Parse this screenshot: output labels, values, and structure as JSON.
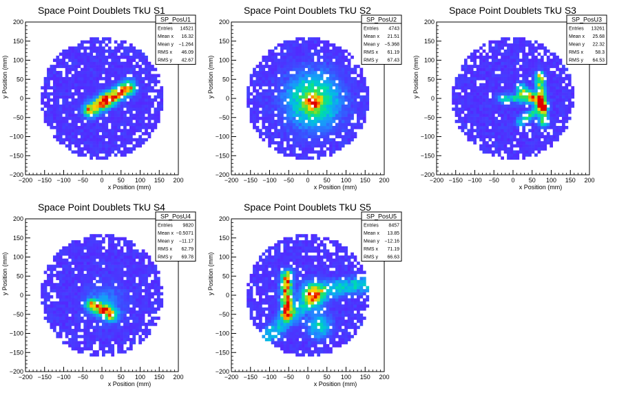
{
  "palette": {
    "background": "#ffffff",
    "heatmap_low": "#5a1fff",
    "heatmap_scale": [
      "#5a1fff",
      "#3a4fff",
      "#1e90ff",
      "#00c0e0",
      "#00e0a0",
      "#40e040",
      "#b0e020",
      "#ffd000",
      "#ff7000",
      "#e00000"
    ]
  },
  "chart_data": [
    {
      "type": "heatmap",
      "title": "Space Point Doublets TkU S1",
      "xlabel": "x Position (mm)",
      "ylabel": "y Position (mm)",
      "xlim": [
        -200,
        200
      ],
      "ylim": [
        -200,
        200
      ],
      "xticks": [
        "−200",
        "−150",
        "−100",
        "−50",
        "0",
        "50",
        "100",
        "150",
        "200"
      ],
      "yticks": [
        "200",
        "150",
        "100",
        "50",
        "0",
        "−50",
        "−100",
        "−150",
        "−200"
      ],
      "stats": {
        "name": "SP_PosU1",
        "rows": [
          [
            "Entries",
            "14521"
          ],
          [
            "Mean x",
            "16.32"
          ],
          [
            "Mean y",
            "−1.264"
          ],
          [
            "RMS x",
            "46.09"
          ],
          [
            "RMS y",
            "42.67"
          ]
        ]
      },
      "footprint": {
        "cx": 0,
        "cy": 0,
        "r": 160
      },
      "hotspots": [
        {
          "shape": "line",
          "x1": -30,
          "y1": -30,
          "x2": 70,
          "y2": 30,
          "intensity": 1.0,
          "width": 12
        },
        {
          "shape": "blob",
          "x": 10,
          "y": -5,
          "sigma": 10,
          "intensity": 0.6
        }
      ]
    },
    {
      "type": "heatmap",
      "title": "Space Point Doublets TkU S2",
      "xlabel": "x Position (mm)",
      "ylabel": "y Position (mm)",
      "xlim": [
        -200,
        200
      ],
      "ylim": [
        -200,
        200
      ],
      "xticks": [
        "−200",
        "−150",
        "−100",
        "−50",
        "0",
        "50",
        "100",
        "150",
        "200"
      ],
      "yticks": [
        "200",
        "150",
        "100",
        "50",
        "0",
        "−50",
        "−100",
        "−150",
        "−200"
      ],
      "stats": {
        "name": "SP_PosU2",
        "rows": [
          [
            "Entries",
            "4743"
          ],
          [
            "Mean x",
            "21.51"
          ],
          [
            "Mean y",
            "−5.368"
          ],
          [
            "RMS x",
            "61.19"
          ],
          [
            "RMS y",
            "67.43"
          ]
        ]
      },
      "footprint": {
        "cx": 0,
        "cy": 0,
        "r": 160
      },
      "hotspots": [
        {
          "shape": "blob",
          "x": 15,
          "y": -5,
          "sigma": 45,
          "intensity": 0.55
        },
        {
          "shape": "blob",
          "x": 15,
          "y": -10,
          "sigma": 12,
          "intensity": 0.6
        }
      ]
    },
    {
      "type": "heatmap",
      "title": "Space Point Doublets TkU S3",
      "xlabel": "x Position (mm)",
      "ylabel": "y Position (mm)",
      "xlim": [
        -200,
        200
      ],
      "ylim": [
        -200,
        200
      ],
      "xticks": [
        "−200",
        "−150",
        "−100",
        "−50",
        "0",
        "50",
        "100",
        "150",
        "200"
      ],
      "yticks": [
        "200",
        "150",
        "100",
        "50",
        "0",
        "−50",
        "−100",
        "−150",
        "−200"
      ],
      "stats": {
        "name": "SP_PosU3",
        "rows": [
          [
            "Entries",
            "13261"
          ],
          [
            "Mean x",
            "25.68"
          ],
          [
            "Mean y",
            "22.32"
          ],
          [
            "RMS x",
            "58.3"
          ],
          [
            "RMS y",
            "64.53"
          ]
        ]
      },
      "footprint": {
        "cx": 0,
        "cy": 0,
        "r": 160
      },
      "hotspots": [
        {
          "shape": "line",
          "x1": -30,
          "y1": 0,
          "x2": 70,
          "y2": 0,
          "intensity": 0.45,
          "width": 8
        },
        {
          "shape": "line",
          "x1": 70,
          "y1": 60,
          "x2": 80,
          "y2": -60,
          "intensity": 0.75,
          "width": 8
        },
        {
          "shape": "line",
          "x1": 20,
          "y1": 30,
          "x2": 80,
          "y2": -20,
          "intensity": 0.55,
          "width": 8
        },
        {
          "shape": "line",
          "x1": 20,
          "y1": -60,
          "x2": 80,
          "y2": -20,
          "intensity": 0.45,
          "width": 8
        },
        {
          "shape": "blob",
          "x": 80,
          "y": -25,
          "sigma": 6,
          "intensity": 0.5
        },
        {
          "shape": "blob",
          "x": 20,
          "y": 10,
          "sigma": 6,
          "intensity": 0.4
        }
      ]
    },
    {
      "type": "heatmap",
      "title": "Space Point Doublets TkU S4",
      "xlabel": "x Position (mm)",
      "ylabel": "y Position (mm)",
      "xlim": [
        -200,
        200
      ],
      "ylim": [
        -200,
        200
      ],
      "xticks": [
        "−200",
        "−150",
        "−100",
        "−50",
        "0",
        "50",
        "100",
        "150",
        "200"
      ],
      "yticks": [
        "200",
        "150",
        "100",
        "50",
        "0",
        "−50",
        "−100",
        "−150",
        "−200"
      ],
      "stats": {
        "name": "SP_PosU4",
        "rows": [
          [
            "Entries",
            "9820"
          ],
          [
            "Mean x",
            "−0.5071"
          ],
          [
            "Mean y",
            "−11.17"
          ],
          [
            "RMS x",
            "62.79"
          ],
          [
            "RMS y",
            "69.78"
          ]
        ]
      },
      "footprint": {
        "cx": 0,
        "cy": 0,
        "r": 160
      },
      "hotspots": [
        {
          "shape": "line",
          "x1": -25,
          "y1": -25,
          "x2": 25,
          "y2": -50,
          "intensity": 1.0,
          "width": 10
        },
        {
          "shape": "blob",
          "x": 10,
          "y": -20,
          "sigma": 30,
          "intensity": 0.18
        }
      ]
    },
    {
      "type": "heatmap",
      "title": "Space Point Doublets TkU S5",
      "xlabel": "x Position (mm)",
      "ylabel": "y Position (mm)",
      "xlim": [
        -200,
        200
      ],
      "ylim": [
        -200,
        200
      ],
      "xticks": [
        "−200",
        "−150",
        "−100",
        "−50",
        "0",
        "50",
        "100",
        "150",
        "200"
      ],
      "yticks": [
        "200",
        "150",
        "100",
        "50",
        "0",
        "−50",
        "−100",
        "−150",
        "−200"
      ],
      "stats": {
        "name": "SP_PosU5",
        "rows": [
          [
            "Entries",
            "8457"
          ],
          [
            "Mean x",
            "13.85"
          ],
          [
            "Mean y",
            "−12.16"
          ],
          [
            "RMS x",
            "71.19"
          ],
          [
            "RMS y",
            "66.63"
          ]
        ]
      },
      "footprint": {
        "cx": 0,
        "cy": 0,
        "r": 160
      },
      "hotspots": [
        {
          "shape": "line",
          "x1": -55,
          "y1": 50,
          "x2": -55,
          "y2": -50,
          "intensity": 1.0,
          "width": 10
        },
        {
          "shape": "blob",
          "x": 15,
          "y": 0,
          "sigma": 20,
          "intensity": 0.55
        },
        {
          "shape": "line",
          "x1": 10,
          "y1": 10,
          "x2": 150,
          "y2": 30,
          "intensity": 0.4,
          "width": 14
        },
        {
          "shape": "line",
          "x1": 10,
          "y1": -10,
          "x2": -120,
          "y2": -120,
          "intensity": 0.35,
          "width": 14
        },
        {
          "shape": "blob",
          "x": 30,
          "y": -80,
          "sigma": 20,
          "intensity": 0.35
        }
      ]
    }
  ]
}
